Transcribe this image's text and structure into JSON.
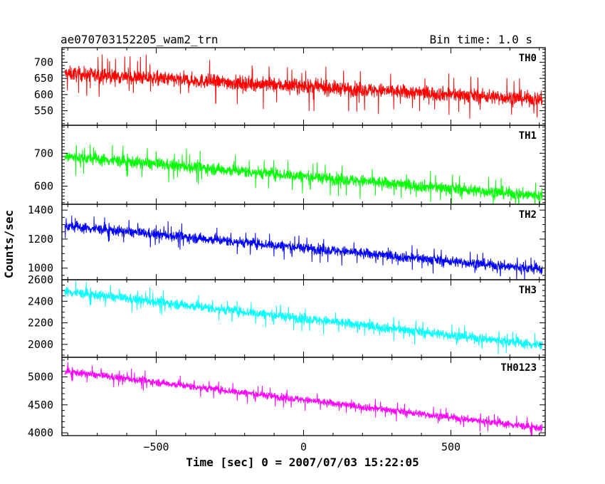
{
  "header": {
    "title": "ae070703152205_wam2_trn",
    "bin_time": "Bin time: 1.0 s"
  },
  "chart_data": {
    "type": "line",
    "xlabel": "Time [sec] 0 = 2007/07/03 15:22:05",
    "ylabel": "Counts/sec",
    "xlim": [
      -820,
      820
    ],
    "x_range": [
      -810,
      810
    ],
    "x_ticks": [
      -500,
      0,
      500
    ],
    "x_tick_labels": [
      "−500",
      "0",
      "500"
    ],
    "panels": [
      {
        "name": "TH0",
        "color": "#ff0000",
        "ylim": [
          505,
          745
        ],
        "yticks": [
          550,
          600,
          650,
          700
        ],
        "start": 665,
        "end": 585,
        "noise": 22,
        "spike": 55
      },
      {
        "name": "TH1",
        "color": "#00ff00",
        "ylim": [
          545,
          785
        ],
        "yticks": [
          600,
          700
        ],
        "start": 690,
        "end": 570,
        "noise": 18,
        "spike": 40
      },
      {
        "name": "TH2",
        "color": "#0000ff",
        "ylim": [
          920,
          1440
        ],
        "yticks": [
          1000,
          1200,
          1400
        ],
        "start": 1290,
        "end": 990,
        "noise": 35,
        "spike": 70
      },
      {
        "name": "TH3",
        "color": "#00ffff",
        "ylim": [
          1880,
          2600
        ],
        "yticks": [
          2000,
          2200,
          2400,
          2600
        ],
        "start": 2490,
        "end": 1990,
        "noise": 45,
        "spike": 90
      },
      {
        "name": "TH0123",
        "color": "#ff00ff",
        "ylim": [
          3950,
          5350
        ],
        "yticks": [
          4000,
          4500,
          5000
        ],
        "start": 5100,
        "end": 4080,
        "noise": 65,
        "spike": 140
      }
    ]
  }
}
